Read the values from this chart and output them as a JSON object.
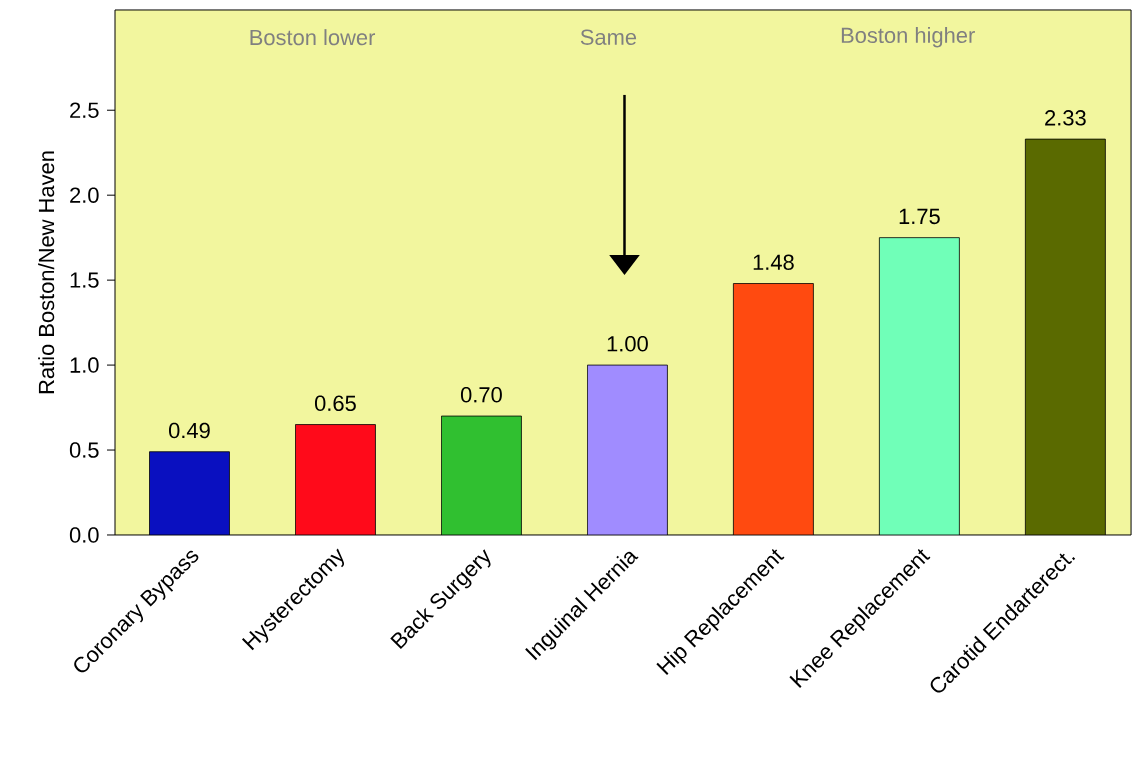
{
  "chart_data": {
    "type": "bar",
    "ylabel": "Ratio Boston/New Haven",
    "categories": [
      "Coronary Bypass",
      "Hysterectomy",
      "Back Surgery",
      "Inguinal Hernia",
      "Hip Replacement",
      "Knee Replacement",
      "Carotid Endarterect."
    ],
    "values": [
      0.49,
      0.65,
      0.7,
      1.0,
      1.48,
      1.75,
      2.33
    ],
    "colors": [
      "#0a10c0",
      "#ff0a1a",
      "#30c030",
      "#a08cff",
      "#ff4a10",
      "#70ffb8",
      "#5a6a00"
    ],
    "value_labels": [
      "0.49",
      "0.65",
      "0.70",
      "1.00",
      "1.48",
      "1.75",
      "2.33"
    ],
    "ylim": [
      0,
      3.09
    ],
    "yticks": [
      {
        "value": 0,
        "label": "0.0"
      },
      {
        "value": 0.5,
        "label": "0.5"
      },
      {
        "value": 1.0,
        "label": "1.0"
      },
      {
        "value": 1.5,
        "label": "1.5"
      },
      {
        "value": 2.0,
        "label": "2.0"
      },
      {
        "value": 2.5,
        "label": "2.5"
      }
    ],
    "annotations": [
      "Boston lower",
      "Same",
      "Boston higher"
    ],
    "grid": false
  }
}
